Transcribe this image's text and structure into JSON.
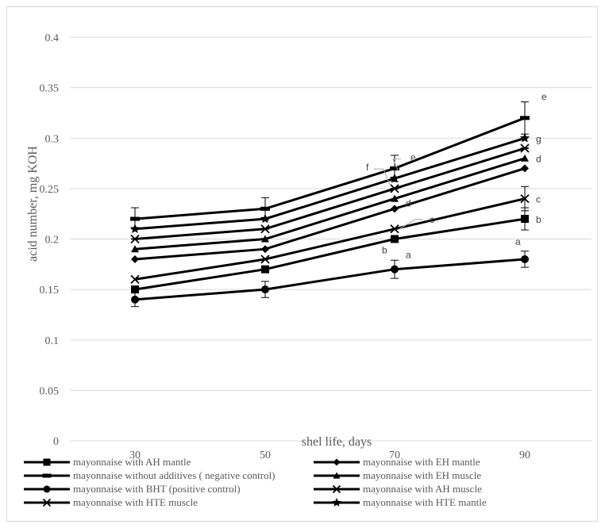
{
  "chart_data": {
    "type": "line",
    "title": "",
    "xlabel": "shel life, days",
    "ylabel": "acid number, mg KOH",
    "categories": [
      "30",
      "50",
      "70",
      "90"
    ],
    "ylim": [
      0,
      0.4
    ],
    "yticks": [
      "0",
      "0.05",
      "0.1",
      "0.15",
      "0.2",
      "0.25",
      "0.3",
      "0.35",
      "0.4"
    ],
    "grid": true,
    "legend_position": "bottom",
    "series": [
      {
        "name": "mayonnaise with AH mantle",
        "marker": "square",
        "values": [
          0.15,
          0.17,
          0.2,
          0.22
        ],
        "label_90": "b"
      },
      {
        "name": "mayonnaise with EH mantle",
        "marker": "diamond",
        "values": [
          0.18,
          0.19,
          0.23,
          0.27
        ],
        "label_90": ""
      },
      {
        "name": "mayonnaise without additives ( negative control)",
        "marker": "dash",
        "values": [
          0.22,
          0.23,
          0.27,
          0.32
        ],
        "label_90": "e"
      },
      {
        "name": "mayonnaise with EH muscle",
        "marker": "triangle",
        "values": [
          0.19,
          0.2,
          0.24,
          0.28
        ],
        "label_90": "d"
      },
      {
        "name": "mayonnaise with BHT (positive control)",
        "marker": "circle",
        "values": [
          0.14,
          0.15,
          0.17,
          0.18
        ],
        "label_90": "a"
      },
      {
        "name": "mayonnaise with AH muscle",
        "marker": "asterisk",
        "values": [
          0.2,
          0.21,
          0.25,
          0.29
        ],
        "label_90": ""
      },
      {
        "name": "mayonnaise with HTE muscle",
        "marker": "x",
        "values": [
          0.16,
          0.18,
          0.21,
          0.24
        ],
        "label_90": "c"
      },
      {
        "name": "mayonnaise with HTE mantle",
        "marker": "star",
        "values": [
          0.21,
          0.22,
          0.26,
          0.3
        ],
        "label_90": "g"
      }
    ],
    "error_bars": [
      {
        "series": 2,
        "x_index": 0,
        "low": 0.21,
        "high": 0.231
      },
      {
        "series": 2,
        "x_index": 1,
        "low": 0.219,
        "high": 0.241
      },
      {
        "series": 2,
        "x_index": 2,
        "low": 0.257,
        "high": 0.283
      },
      {
        "series": 2,
        "x_index": 3,
        "low": 0.304,
        "high": 0.336
      },
      {
        "series": 4,
        "x_index": 0,
        "low": 0.133,
        "high": 0.147
      },
      {
        "series": 4,
        "x_index": 1,
        "low": 0.142,
        "high": 0.158
      },
      {
        "series": 4,
        "x_index": 2,
        "low": 0.161,
        "high": 0.179
      },
      {
        "series": 4,
        "x_index": 3,
        "low": 0.172,
        "high": 0.188
      },
      {
        "series": 0,
        "x_index": 3,
        "low": 0.209,
        "high": 0.231
      },
      {
        "series": 6,
        "x_index": 3,
        "low": 0.228,
        "high": 0.252
      }
    ],
    "annotations": [
      {
        "text": "f",
        "x": "70",
        "y": 0.26
      },
      {
        "text": "e",
        "x": "70",
        "y": 0.27
      },
      {
        "text": "d",
        "x": "70",
        "y": 0.24
      },
      {
        "text": "c",
        "x": "70",
        "y": 0.21
      },
      {
        "text": "b",
        "x": "70",
        "y": 0.2
      },
      {
        "text": "a",
        "x": "70",
        "y": 0.17
      }
    ]
  }
}
